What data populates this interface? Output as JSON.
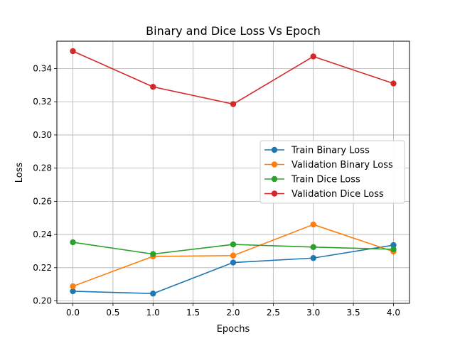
{
  "chart_data": {
    "type": "line",
    "title": "Binary and Dice Loss Vs Epoch",
    "xlabel": "Epochs",
    "ylabel": "Loss",
    "x": [
      0,
      1,
      2,
      3,
      4
    ],
    "xlim": [
      -0.2,
      4.2
    ],
    "ylim": [
      0.1985,
      0.3565
    ],
    "xticks": [
      0.0,
      0.5,
      1.0,
      1.5,
      2.0,
      2.5,
      3.0,
      3.5,
      4.0
    ],
    "xtick_labels": [
      "0.0",
      "0.5",
      "1.0",
      "1.5",
      "2.0",
      "2.5",
      "3.0",
      "3.5",
      "4.0"
    ],
    "yticks": [
      0.2,
      0.22,
      0.24,
      0.26,
      0.28,
      0.3,
      0.32,
      0.34
    ],
    "ytick_labels": [
      "0.20",
      "0.22",
      "0.24",
      "0.26",
      "0.28",
      "0.30",
      "0.32",
      "0.34"
    ],
    "grid": true,
    "legend_position": "center-right",
    "series": [
      {
        "name": "Train Binary Loss",
        "color": "#1f77b4",
        "values": [
          0.2058,
          0.2044,
          0.2231,
          0.2258,
          0.2336
        ]
      },
      {
        "name": "Validation Binary Loss",
        "color": "#ff7f0e",
        "values": [
          0.2088,
          0.2268,
          0.2273,
          0.246,
          0.2297
        ]
      },
      {
        "name": "Train Dice Loss",
        "color": "#2ca02c",
        "values": [
          0.2353,
          0.2282,
          0.234,
          0.2324,
          0.2311
        ]
      },
      {
        "name": "Validation Dice Loss",
        "color": "#d62728",
        "values": [
          0.3505,
          0.329,
          0.3186,
          0.3473,
          0.331
        ]
      }
    ]
  }
}
